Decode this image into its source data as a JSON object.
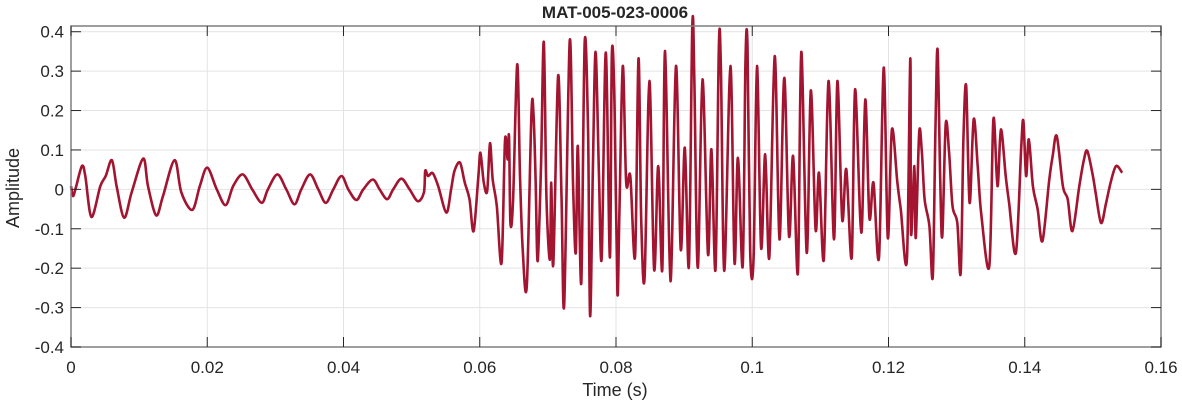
{
  "chart_data": {
    "type": "line",
    "title": "MAT-005-023-0006",
    "xlabel": "Time (s)",
    "ylabel": "Amplitude",
    "xlim": [
      0,
      0.16
    ],
    "ylim": [
      -0.4,
      0.4145
    ],
    "xticks": [
      0,
      0.02,
      0.04,
      0.06,
      0.08,
      0.1,
      0.12,
      0.14,
      0.16
    ],
    "xtick_labels": [
      "0",
      "0.02",
      "0.04",
      "0.06",
      "0.08",
      "0.1",
      "0.12",
      "0.14",
      "0.16"
    ],
    "yticks": [
      0.4,
      0.3,
      0.2,
      0.1,
      0,
      -0.1,
      -0.2,
      -0.3,
      -0.4
    ],
    "ytick_labels": [
      "0.4",
      "0.3",
      "0.2",
      "0.1",
      "0",
      "-0.1",
      "-0.2",
      "-0.3",
      "-0.4"
    ],
    "grid": true,
    "line_color": "#A2142F",
    "series": [
      {
        "x": [
          0,
          0.0003,
          0.0007,
          0.0016,
          0.0021,
          0.003,
          0.0043,
          0.0051,
          0.006,
          0.0067,
          0.0078,
          0.0089,
          0.0106,
          0.0113,
          0.0125,
          0.0135,
          0.0152,
          0.0162,
          0.0178,
          0.0189,
          0.02,
          0.0214,
          0.0227,
          0.0238,
          0.0252,
          0.0266,
          0.028,
          0.0289,
          0.0303,
          0.0316,
          0.0328,
          0.0338,
          0.0351,
          0.0363,
          0.0374,
          0.0385,
          0.0397,
          0.0407,
          0.0419,
          0.0429,
          0.0443,
          0.0453,
          0.0464,
          0.0473,
          0.0485,
          0.0497,
          0.0509,
          0.0518,
          0.052,
          0.0524,
          0.0531,
          0.0539,
          0.0551,
          0.0558,
          0.0563,
          0.0571,
          0.0578,
          0.0585,
          0.0591,
          0.0598,
          0.0601,
          0.0606,
          0.0611,
          0.0615,
          0.0619,
          0.0625,
          0.0632,
          0.0637,
          0.0641,
          0.0643,
          0.0645,
          0.0649,
          0.0655,
          0.0659,
          0.0663,
          0.0669,
          0.0676,
          0.0679,
          0.0682,
          0.0685,
          0.069,
          0.0694,
          0.0698,
          0.0703,
          0.0705,
          0.0708,
          0.0715,
          0.072,
          0.0724,
          0.0732,
          0.0737,
          0.0741,
          0.0744,
          0.0749,
          0.0754,
          0.0759,
          0.0762,
          0.0766,
          0.077,
          0.0775,
          0.0779,
          0.0785,
          0.0791,
          0.0794,
          0.0798,
          0.0802,
          0.0805,
          0.081,
          0.0815,
          0.0821,
          0.0828,
          0.0833,
          0.0837,
          0.0842,
          0.0849,
          0.0856,
          0.0862,
          0.0868,
          0.0872,
          0.088,
          0.0888,
          0.0895,
          0.0901,
          0.0907,
          0.0912,
          0.0915,
          0.092,
          0.0927,
          0.0935,
          0.094,
          0.0946,
          0.0951,
          0.0954,
          0.0959,
          0.0968,
          0.0974,
          0.0979,
          0.0986,
          0.099,
          0.0993,
          0.0997,
          0.1002,
          0.1007,
          0.1013,
          0.1019,
          0.1025,
          0.1033,
          0.104,
          0.1047,
          0.1054,
          0.106,
          0.1067,
          0.1072,
          0.108,
          0.1086,
          0.1093,
          0.1098,
          0.1105,
          0.1112,
          0.112,
          0.1125,
          0.1132,
          0.1138,
          0.1146,
          0.1151,
          0.116,
          0.1166,
          0.1172,
          0.1178,
          0.1186,
          0.1193,
          0.1199,
          0.1205,
          0.1213,
          0.1218,
          0.1227,
          0.1232,
          0.1233,
          0.1238,
          0.124,
          0.1245,
          0.1249,
          0.1253,
          0.126,
          0.1265,
          0.1269,
          0.1272,
          0.1276,
          0.1279,
          0.1284,
          0.1289,
          0.1294,
          0.1301,
          0.1306,
          0.131,
          0.1314,
          0.1319,
          0.1325,
          0.1331,
          0.1336,
          0.1348,
          0.1354,
          0.136,
          0.1365,
          0.1372,
          0.1377,
          0.1387,
          0.1395,
          0.1398,
          0.1402,
          0.1406,
          0.1412,
          0.1419,
          0.1426,
          0.1436,
          0.1441,
          0.1447,
          0.1456,
          0.1463,
          0.147,
          0.148,
          0.1487,
          0.1492,
          0.15,
          0.1504,
          0.1512,
          0.1519,
          0.1526,
          0.1534,
          0.1543
        ],
        "y": [
          0.008,
          -0.017,
          0.004,
          0.059,
          0.034,
          -0.07,
          0.008,
          0.034,
          0.074,
          0.008,
          -0.072,
          -0.008,
          0.078,
          0.008,
          -0.066,
          -0.017,
          0.074,
          -0.008,
          -0.052,
          0.008,
          0.055,
          0,
          -0.04,
          0.008,
          0.038,
          0,
          -0.034,
          0,
          0.038,
          0,
          -0.038,
          0,
          0.038,
          0,
          -0.034,
          0,
          0.034,
          0,
          -0.027,
          0,
          0.025,
          0,
          -0.025,
          0,
          0.027,
          0,
          -0.03,
          -0.008,
          0.047,
          0.034,
          0.041,
          0.008,
          -0.059,
          0,
          0.047,
          0.068,
          0.017,
          -0.025,
          -0.106,
          0.034,
          0.093,
          0.017,
          -0.004,
          0.117,
          0.025,
          -0.042,
          -0.186,
          0.123,
          0.076,
          0.135,
          -0.085,
          -0.025,
          0.317,
          0.042,
          -0.152,
          -0.245,
          0.195,
          0.186,
          0.025,
          -0.182,
          0.068,
          0.374,
          -0.025,
          -0.178,
          0.017,
          -0.19,
          0.288,
          -0.017,
          -0.292,
          0.376,
          0.008,
          -0.161,
          0.11,
          -0.237,
          0.374,
          0.144,
          -0.321,
          0.042,
          0.349,
          0.034,
          -0.173,
          0.347,
          -0.173,
          0.347,
          0.203,
          -0.262,
          -0.059,
          0.313,
          0.017,
          0.034,
          -0.169,
          0.332,
          -0.076,
          -0.224,
          0.275,
          -0.203,
          0.059,
          -0.203,
          0.351,
          -0.233,
          0.313,
          -0.152,
          0.106,
          -0.195,
          0.414,
          0.283,
          -0.199,
          0.279,
          -0.165,
          0.102,
          -0.203,
          0.365,
          0.309,
          -0.207,
          0.313,
          -0.186,
          0.08,
          -0.195,
          0.317,
          0.364,
          -0.161,
          -0.173,
          0.313,
          -0.148,
          0.089,
          -0.173,
          0.338,
          -0.127,
          0.283,
          -0.118,
          0.085,
          -0.212,
          0.349,
          -0.161,
          0.251,
          -0.102,
          0.042,
          -0.178,
          0.275,
          -0.127,
          0.275,
          -0.076,
          0.051,
          -0.173,
          0.254,
          -0.11,
          0.228,
          -0.072,
          0.017,
          -0.173,
          0.309,
          -0.123,
          0.152,
          0.017,
          -0.051,
          -0.178,
          0.332,
          -0.11,
          0.059,
          -0.123,
          0.144,
          0.093,
          -0.025,
          -0.093,
          -0.22,
          0.161,
          0.354,
          0.017,
          -0.118,
          0.165,
          0.093,
          -0.042,
          -0.085,
          -0.212,
          0.127,
          0.262,
          -0.034,
          0.178,
          0.059,
          -0.059,
          -0.195,
          0.178,
          0.008,
          0.152,
          0.034,
          -0.034,
          -0.161,
          0.11,
          0.173,
          0.034,
          0.127,
          0.008,
          -0.051,
          -0.131,
          0.025,
          0.085,
          0.135,
          0.008,
          -0.025,
          -0.106,
          0.008,
          0.076,
          0.097,
          0.034,
          -0.008,
          -0.085,
          -0.038,
          0.017,
          0.059,
          0.042
        ]
      }
    ]
  }
}
